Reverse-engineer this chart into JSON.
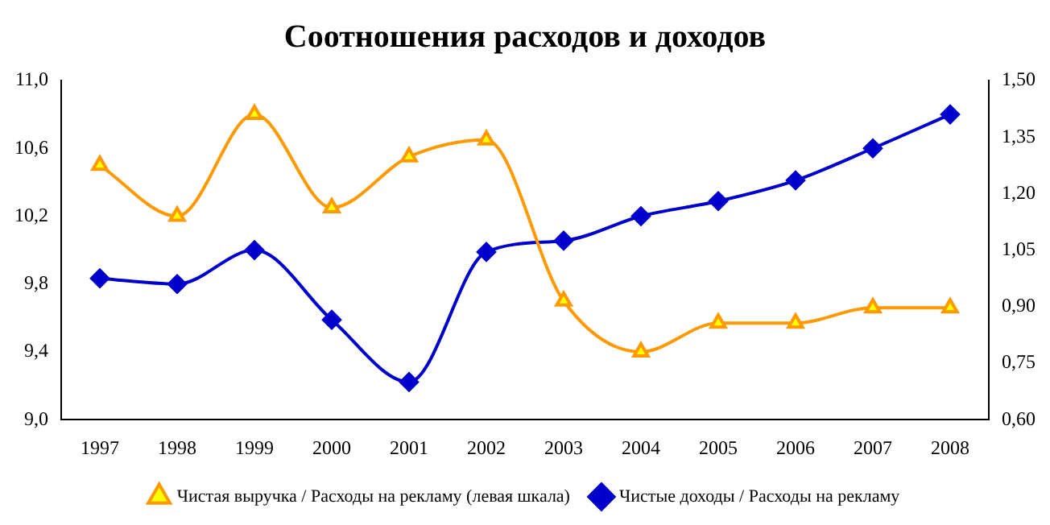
{
  "chart_data": {
    "type": "line",
    "title": "Соотношения расходов и доходов",
    "categories": [
      "1997",
      "1998",
      "1999",
      "2000",
      "2001",
      "2002",
      "2003",
      "2004",
      "2005",
      "2006",
      "2007",
      "2008"
    ],
    "series": [
      {
        "name": "Чистая выручка / Расходы на рекламу (левая шкала)",
        "color": "#ff9900",
        "marker": "triangle",
        "values": [
          10.5,
          10.2,
          10.8,
          10.25,
          10.55,
          10.65,
          9.7,
          9.4,
          9.57,
          9.57,
          9.66,
          9.66
        ]
      },
      {
        "name": "Чистые доходы / Расходы на рекламу",
        "color": "#0000cc",
        "marker": "diamond",
        "axis": "y2",
        "values": [
          0.975,
          0.96,
          1.05,
          0.865,
          0.7,
          1.045,
          1.075,
          1.14,
          1.18,
          1.235,
          1.32,
          1.41
        ]
      }
    ],
    "ylim": [
      9.0,
      11.0
    ],
    "yticks": [
      {
        "value": 9.0,
        "label": "9,0"
      },
      {
        "value": 9.4,
        "label": "9,4"
      },
      {
        "value": 9.8,
        "label": "9,8"
      },
      {
        "value": 10.2,
        "label": "10,2"
      },
      {
        "value": 10.6,
        "label": "10,6"
      },
      {
        "value": 11.0,
        "label": "11,0"
      }
    ],
    "y2lim": [
      0.6,
      1.5
    ],
    "y2ticks": [
      {
        "value": 0.6,
        "label": "0,60"
      },
      {
        "value": 0.75,
        "label": "0,75"
      },
      {
        "value": 0.9,
        "label": "0,90"
      },
      {
        "value": 1.05,
        "label": "1,05"
      },
      {
        "value": 1.2,
        "label": "1,20"
      },
      {
        "value": 1.35,
        "label": "1,35"
      },
      {
        "value": 1.5,
        "label": "1,50"
      }
    ],
    "grid": false,
    "legend": "bottom"
  }
}
